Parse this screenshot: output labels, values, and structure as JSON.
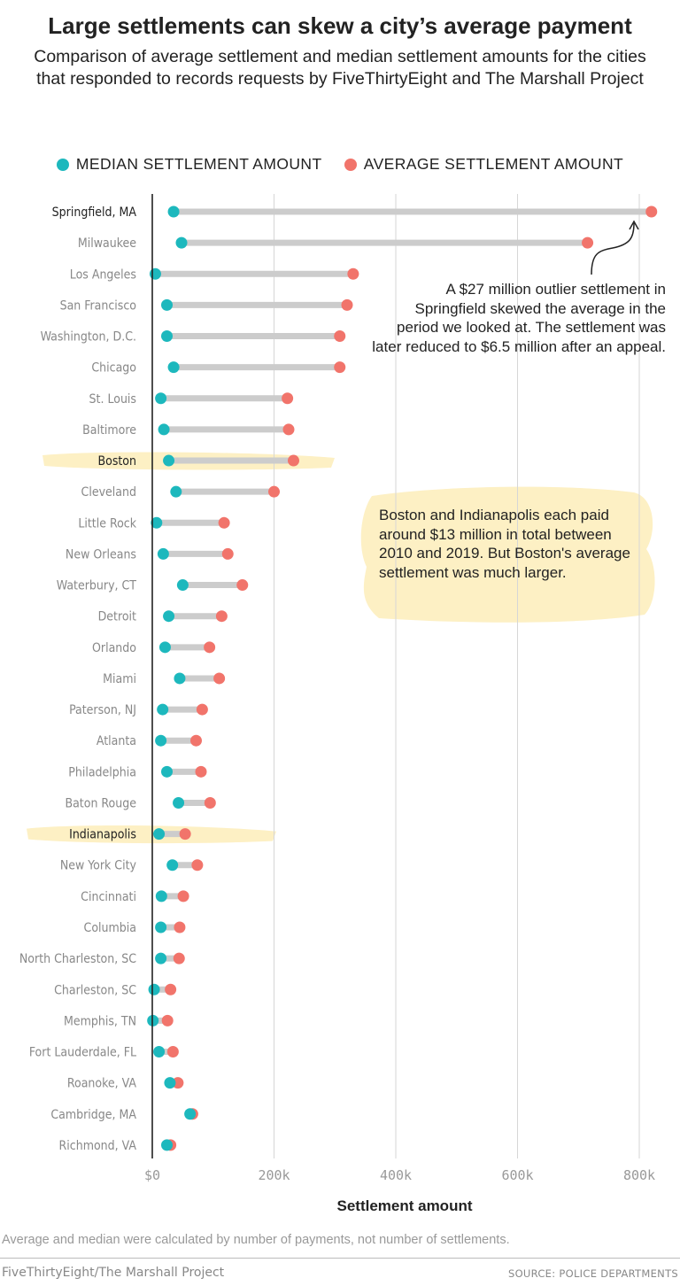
{
  "title": "Large settlements can skew a city’s average payment",
  "subtitle": "Comparison of average settlement and median settlement amounts for the cities that responded to records requests by FiveThirtyEight and The Marshall Project",
  "legend": {
    "median_label": "MEDIAN SETTLEMENT AMOUNT",
    "average_label": "AVERAGE SETTLEMENT AMOUNT"
  },
  "colors": {
    "median": "#1db8bd",
    "average": "#f1746b",
    "connector": "#cccccc",
    "highlight": "#fdf0c4"
  },
  "annotations": {
    "springfield": "A $27 million outlier settlement in Springfield skewed the average in the period we looked at. The settlement was later reduced to $6.5 million after an appeal.",
    "boston_indianapolis": "Boston and Indianapolis each paid around $13 million in total between 2010 and 2019. But Boston's average settlement was much larger."
  },
  "chart_data": {
    "type": "scatter",
    "subtype": "dumbbell",
    "xlabel": "Settlement amount",
    "xlim": [
      0,
      800000
    ],
    "xticks": [
      0,
      200000,
      400000,
      600000,
      800000
    ],
    "xtick_labels": [
      "$0",
      "200k",
      "400k",
      "600k",
      "800k"
    ],
    "grid": true,
    "legend_position": "top",
    "series_names": [
      "MEDIAN SETTLEMENT AMOUNT",
      "AVERAGE SETTLEMENT AMOUNT"
    ],
    "highlighted": [
      "Boston",
      "Indianapolis"
    ],
    "cities": [
      {
        "name": "Springfield, MA",
        "median": 35000,
        "average": 820000
      },
      {
        "name": "Milwaukee",
        "median": 48000,
        "average": 715000
      },
      {
        "name": "Los Angeles",
        "median": 5000,
        "average": 330000
      },
      {
        "name": "San Francisco",
        "median": 24000,
        "average": 320000
      },
      {
        "name": "Washington, D.C.",
        "median": 24000,
        "average": 308000
      },
      {
        "name": "Chicago",
        "median": 35000,
        "average": 308000
      },
      {
        "name": "St. Louis",
        "median": 14000,
        "average": 222000
      },
      {
        "name": "Baltimore",
        "median": 19000,
        "average": 224000
      },
      {
        "name": "Boston",
        "median": 27000,
        "average": 232000
      },
      {
        "name": "Cleveland",
        "median": 39000,
        "average": 200000
      },
      {
        "name": "Little Rock",
        "median": 7000,
        "average": 118000
      },
      {
        "name": "New Orleans",
        "median": 18000,
        "average": 124000
      },
      {
        "name": "Waterbury, CT",
        "median": 50000,
        "average": 148000
      },
      {
        "name": "Detroit",
        "median": 27000,
        "average": 114000
      },
      {
        "name": "Orlando",
        "median": 21000,
        "average": 94000
      },
      {
        "name": "Miami",
        "median": 45000,
        "average": 110000
      },
      {
        "name": "Paterson, NJ",
        "median": 17000,
        "average": 82000
      },
      {
        "name": "Atlanta",
        "median": 14000,
        "average": 72000
      },
      {
        "name": "Philadelphia",
        "median": 24000,
        "average": 80000
      },
      {
        "name": "Baton Rouge",
        "median": 43000,
        "average": 95000
      },
      {
        "name": "Indianapolis",
        "median": 11000,
        "average": 54000
      },
      {
        "name": "New York City",
        "median": 33000,
        "average": 74000
      },
      {
        "name": "Cincinnati",
        "median": 15000,
        "average": 51000
      },
      {
        "name": "Columbia",
        "median": 14000,
        "average": 45000
      },
      {
        "name": "North Charleston, SC",
        "median": 14000,
        "average": 44000
      },
      {
        "name": "Charleston, SC",
        "median": 3000,
        "average": 30000
      },
      {
        "name": "Memphis, TN",
        "median": 1000,
        "average": 25000
      },
      {
        "name": "Fort Lauderdale, FL",
        "median": 11000,
        "average": 34000
      },
      {
        "name": "Roanoke, VA",
        "median": 29000,
        "average": 42000
      },
      {
        "name": "Cambridge, MA",
        "median": 62000,
        "average": 66000
      },
      {
        "name": "Richmond, VA",
        "median": 24000,
        "average": 30000
      }
    ]
  },
  "footer": {
    "footnote": "Average and median were calculated by number of payments, not number of settlements.",
    "credit": "FiveThirtyEight/The Marshall Project",
    "source": "SOURCE: POLICE DEPARTMENTS"
  }
}
